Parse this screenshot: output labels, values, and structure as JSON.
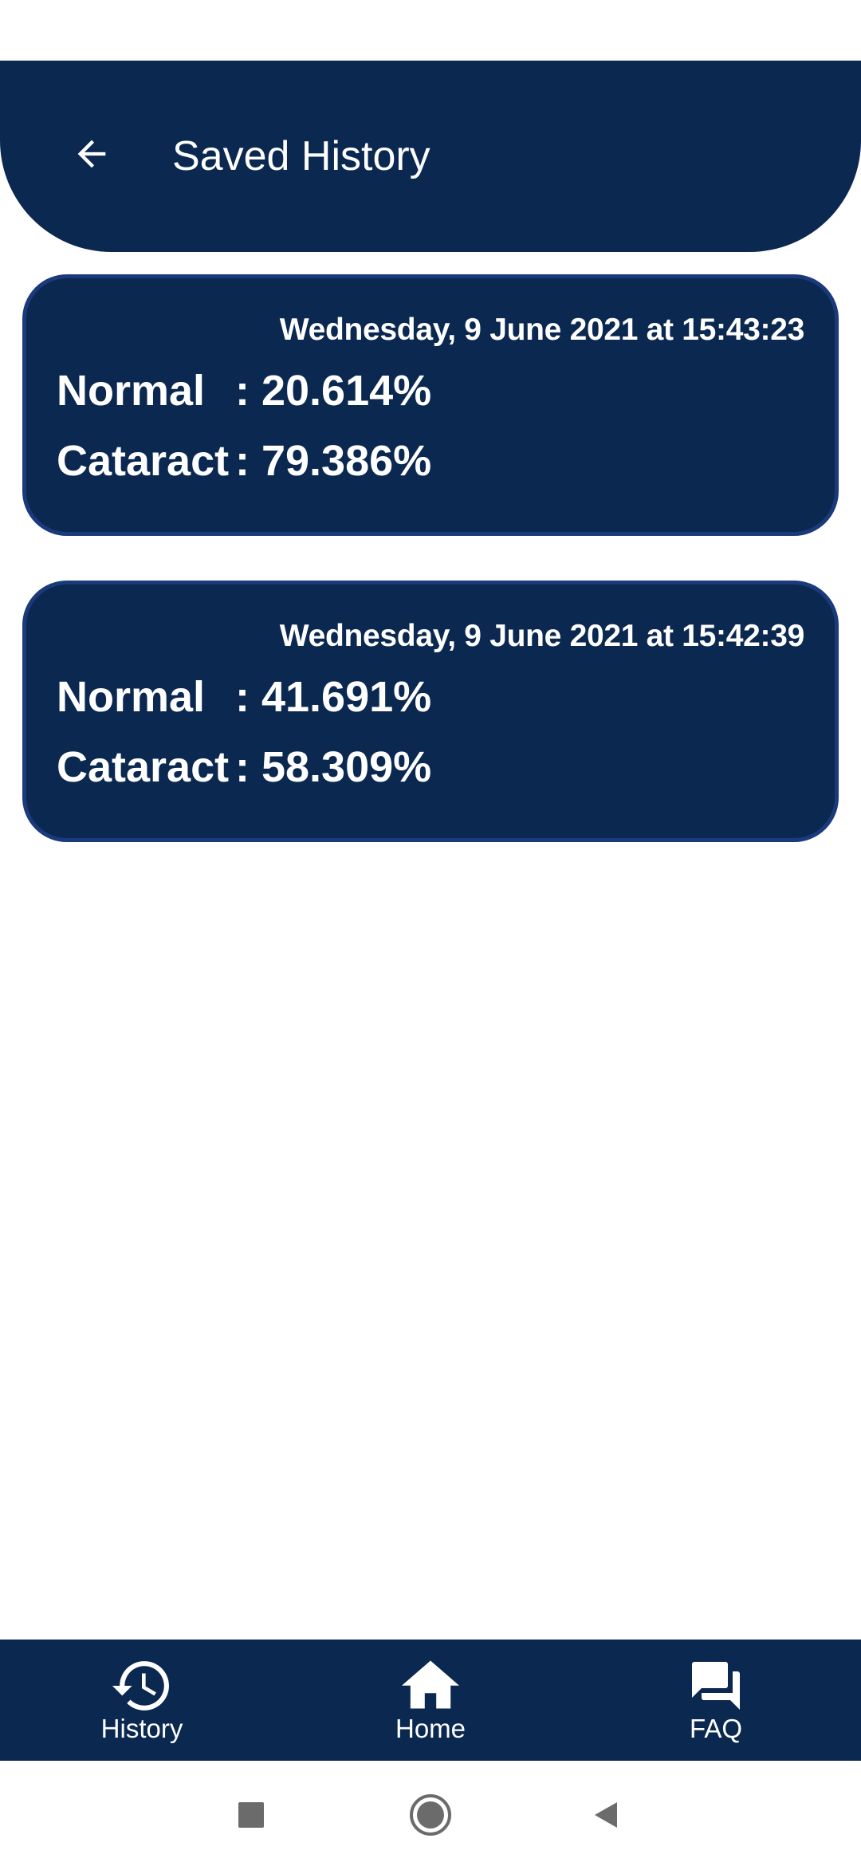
{
  "header": {
    "title": "Saved History",
    "back_icon": "arrow-left-icon"
  },
  "records": [
    {
      "date": "Wednesday, 9 June 2021 at 15:43:23",
      "normal_label": "Normal",
      "normal_value": ": 20.614%",
      "cataract_label": "Cataract",
      "cataract_value": ": 79.386%"
    },
    {
      "date": "Wednesday, 9 June 2021 at 15:42:39",
      "normal_label": "Normal",
      "normal_value": ": 41.691%",
      "cataract_label": "Cataract",
      "cataract_value": ": 58.309%"
    }
  ],
  "bottom_nav": {
    "items": [
      {
        "label": "History",
        "icon": "history-icon"
      },
      {
        "label": "Home",
        "icon": "home-icon"
      },
      {
        "label": "FAQ",
        "icon": "chat-bubbles-icon"
      }
    ]
  },
  "colors": {
    "primary": "#0a2850",
    "card_border": "#1b3a7c",
    "text_on_primary": "#ffffff",
    "system_nav_icons": "#6b6b6b"
  }
}
